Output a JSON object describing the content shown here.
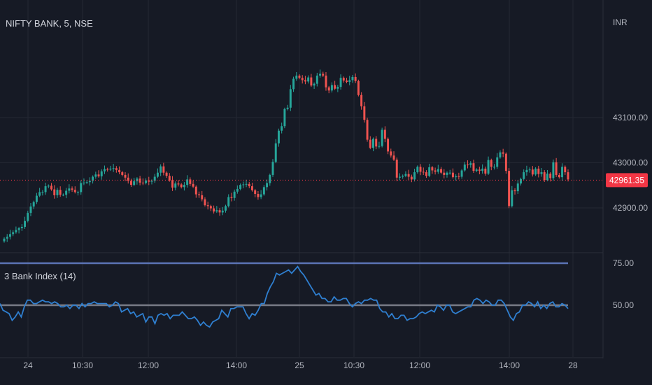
{
  "header": {
    "symbol_title": "NIFTY BANK, 5, NSE",
    "currency": "INR"
  },
  "indicator": {
    "title": "3 Bank Index (14)"
  },
  "colors": {
    "background": "#161a25",
    "up": "#26a69a",
    "down": "#ef5350",
    "indicator_line": "#2f7fd0",
    "band_upper": "#5b74b5",
    "band_mid": "#787b86",
    "last_price_bg": "#f23645",
    "grid": "#242833",
    "axis_text": "#b2b5be"
  },
  "chart_data": [
    {
      "type": "candlestick",
      "y_axis": {
        "ticks": [
          43100.0,
          43000.0,
          42900.0
        ],
        "tick_labels": [
          "43100.00",
          "43000.00",
          "42900.00"
        ],
        "range": [
          42850,
          43200
        ]
      },
      "x_axis": {
        "tick_labels": [
          "24",
          "10:30",
          "12:00",
          "14:00",
          "25",
          "10:30",
          "12:00",
          "14:00",
          "28"
        ]
      },
      "last_price": 42961.35,
      "last_price_label": "42961.35",
      "series": [
        {
          "name": "",
          "close": [
            42832,
            42836,
            42842,
            42846,
            42851,
            42855,
            42858,
            42871,
            42889,
            42903,
            42913,
            42927,
            42935,
            42935,
            42948,
            42949,
            42941,
            42928,
            42940,
            42929,
            42929,
            42938,
            42943,
            42940,
            42935,
            42935,
            42955,
            42956,
            42957,
            42960,
            42969,
            42974,
            42970,
            42981,
            42986,
            42985,
            42987,
            42988,
            42984,
            42979,
            42973,
            42967,
            42960,
            42951,
            42959,
            42965,
            42956,
            42955,
            42961,
            42958,
            42960,
            42969,
            42978,
            42992,
            42978,
            42971,
            42961,
            42945,
            42954,
            42952,
            42946,
            42951,
            42963,
            42953,
            42947,
            42930,
            42928,
            42919,
            42906,
            42904,
            42899,
            42892,
            42895,
            42890,
            42894,
            42904,
            42924,
            42922,
            42936,
            42942,
            42951,
            42952,
            42953,
            42948,
            42939,
            42931,
            42924,
            42930,
            42946,
            42955,
            42973,
            43002,
            43043,
            43071,
            43081,
            43119,
            43122,
            43163,
            43186,
            43193,
            43188,
            43183,
            43180,
            43189,
            43171,
            43175,
            43193,
            43197,
            43193,
            43167,
            43160,
            43172,
            43164,
            43168,
            43188,
            43182,
            43179,
            43183,
            43190,
            43181,
            43150,
            43125,
            43095,
            43051,
            43033,
            43053,
            43036,
            43037,
            43073,
            43053,
            43025,
            43016,
            43007,
            42967,
            42969,
            42971,
            42975,
            42969,
            42963,
            42979,
            42991,
            42980,
            42979,
            42971,
            42990,
            42983,
            42980,
            42986,
            42978,
            42973,
            42978,
            42978,
            42968,
            42970,
            42969,
            42983,
            42996,
            42995,
            42999,
            42982,
            42985,
            42982,
            42987,
            42976,
            43006,
            42991,
            42991,
            43012,
            43023,
            43020,
            42982,
            42904,
            42939,
            42937,
            42954,
            42964,
            42979,
            42984,
            42985,
            42974,
            42987,
            42975,
            42979,
            42962,
            42976,
            42966,
            43001,
            42973,
            42968,
            42991,
            42979,
            42963
          ]
        }
      ]
    },
    {
      "type": "line",
      "title": "3 Bank Index (14)",
      "y_axis": {
        "ticks": [
          75.0,
          50.0
        ],
        "tick_labels": [
          "75.00",
          "50.00"
        ],
        "range": [
          35,
          78
        ]
      },
      "reference_lines": [
        {
          "name": "upper band",
          "value": 75
        },
        {
          "name": "middle band",
          "value": 50
        }
      ],
      "series": [
        {
          "name": "",
          "values": [
            51,
            47,
            46,
            45,
            41,
            43,
            46,
            43,
            49,
            53,
            53,
            51,
            51,
            52,
            53,
            52,
            52,
            51,
            52,
            51,
            49,
            49,
            50,
            48,
            50,
            50,
            48,
            51,
            49,
            51,
            51,
            52,
            51,
            51,
            51,
            51,
            49,
            50,
            52,
            51,
            46,
            47,
            48,
            45,
            46,
            43,
            44,
            45,
            40,
            43,
            43,
            39,
            44,
            45,
            44,
            45,
            42,
            44,
            44,
            44,
            46,
            44,
            42,
            42,
            43,
            41,
            38,
            40,
            38,
            37,
            40,
            41,
            42,
            47,
            45,
            43,
            48,
            48,
            49,
            49,
            49,
            45,
            42,
            45,
            44,
            47,
            51,
            51,
            57,
            61,
            64,
            69,
            68,
            69,
            70,
            71,
            69,
            71,
            73,
            70,
            68,
            65,
            62,
            59,
            56,
            57,
            54,
            54,
            52,
            52,
            55,
            53,
            53,
            54,
            54,
            51,
            49,
            51,
            52,
            51,
            53,
            53,
            54,
            53,
            53,
            48,
            46,
            46,
            43,
            45,
            42,
            42,
            44,
            44,
            41,
            42,
            42,
            43,
            45,
            46,
            45,
            46,
            47,
            46,
            50,
            49,
            47,
            50,
            50,
            46,
            45,
            46,
            47,
            48,
            49,
            49,
            53,
            54,
            53,
            51,
            53,
            52,
            50,
            50,
            53,
            53,
            51,
            47,
            43,
            41,
            45,
            46,
            50,
            50,
            52,
            51,
            49,
            52,
            48,
            50,
            48,
            51,
            52,
            49,
            49,
            51,
            50,
            48
          ]
        }
      ]
    }
  ]
}
